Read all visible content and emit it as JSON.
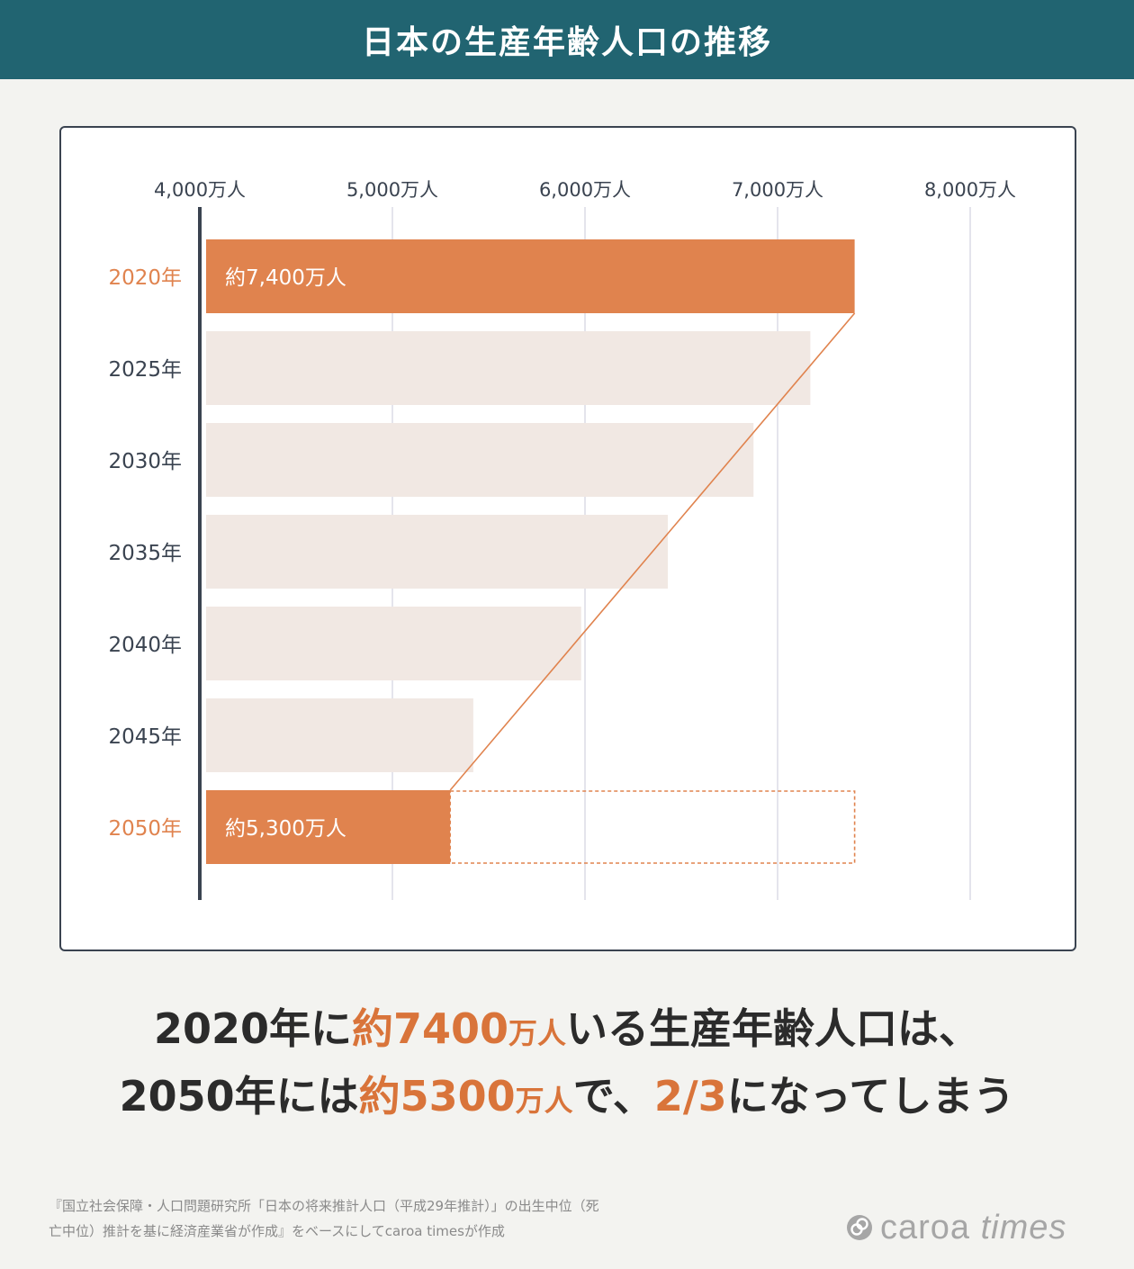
{
  "title": "日本の生産年齢人口の推移",
  "chart_data": {
    "type": "bar",
    "orientation": "horizontal",
    "categories": [
      "2020年",
      "2025年",
      "2030年",
      "2035年",
      "2040年",
      "2045年",
      "2050年"
    ],
    "values": [
      7400,
      7170,
      6875,
      6430,
      5980,
      5420,
      5300
    ],
    "highlight": [
      true,
      false,
      false,
      false,
      false,
      false,
      true
    ],
    "data_labels": [
      "約7,400万人",
      "",
      "",
      "",
      "",
      "",
      "約5,300万人"
    ],
    "xlim": [
      4000,
      8000
    ],
    "x_ticks": [
      4000,
      5000,
      6000,
      7000,
      8000
    ],
    "x_tick_labels": [
      "4,000万人",
      "5,000万人",
      "6,000万人",
      "7,000万人",
      "8,000万人"
    ],
    "axis_position": "top",
    "grid": true,
    "colors": {
      "highlight": "#e0834e",
      "normal": "#f1e8e3",
      "highlight_label": "#e0834e",
      "normal_label": "#3a4350",
      "axis": "#3a4350",
      "grid": "#dcdce6"
    }
  },
  "summary": {
    "line1_a": "2020年に",
    "line1_hl": "約7400",
    "line1_unit": "万人",
    "line1_b": "いる生産年齢人口は、",
    "line2_a": "2050年には",
    "line2_hl": "約5300",
    "line2_unit": "万人",
    "line2_b": "で、",
    "line2_hl2": "2/3",
    "line2_c": "になってしまう"
  },
  "source": {
    "line1": "『国立社会保障・人口問題研究所「日本の将来推計人口（平成29年推計）」の出生中位（死",
    "line2": "亡中位）推計を基に経済産業省が作成』をベースにしてcaroa timesが作成"
  },
  "logo": {
    "name_a": "caroa",
    "name_b": "times"
  }
}
